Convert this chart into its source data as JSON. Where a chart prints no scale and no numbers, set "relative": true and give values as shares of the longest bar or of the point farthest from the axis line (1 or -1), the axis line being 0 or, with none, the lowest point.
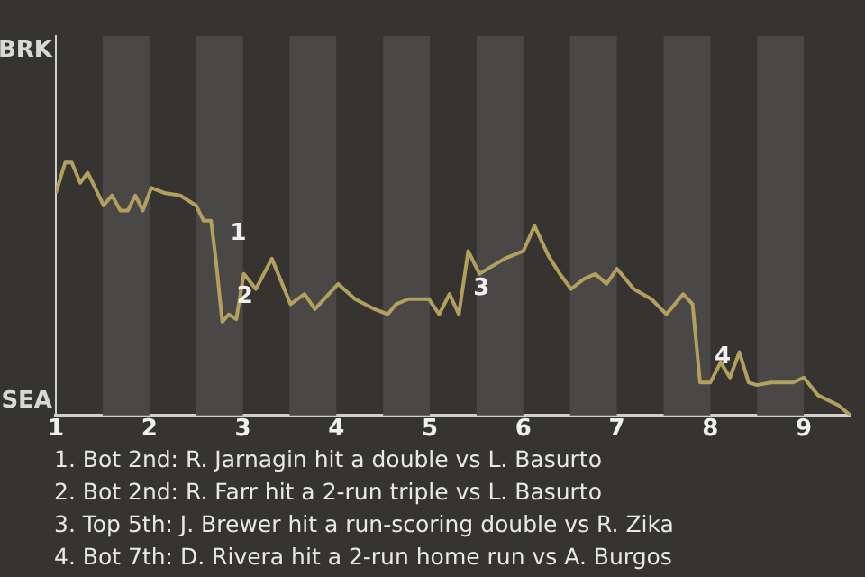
{
  "chart_data": {
    "type": "line",
    "relative": true,
    "x": [
      1.0,
      1.1,
      1.17,
      1.26,
      1.34,
      1.42,
      1.51,
      1.6,
      1.69,
      1.77,
      1.85,
      1.93,
      2.02,
      2.16,
      2.33,
      2.5,
      2.58,
      2.66,
      2.71,
      2.78,
      2.85,
      2.93,
      3.01,
      3.14,
      3.31,
      3.51,
      3.66,
      3.77,
      4.02,
      4.2,
      4.41,
      4.55,
      4.64,
      4.77,
      4.99,
      5.1,
      5.21,
      5.31,
      5.41,
      5.53,
      5.8,
      6.0,
      6.12,
      6.27,
      6.39,
      6.51,
      6.65,
      6.77,
      6.89,
      7.0,
      7.18,
      7.37,
      7.53,
      7.62,
      7.71,
      7.81,
      7.89,
      8.0,
      8.11,
      8.21,
      8.31,
      8.41,
      8.5,
      8.65,
      8.78,
      8.88,
      9.0,
      9.15,
      9.37,
      9.5
    ],
    "series": [
      {
        "color": "#b3a05f",
        "values": [
          0.88,
          1,
          1,
          0.92,
          0.96,
          0.9,
          0.83,
          0.87,
          0.81,
          0.81,
          0.87,
          0.81,
          0.9,
          0.88,
          0.87,
          0.83,
          0.77,
          0.77,
          0.62,
          0.37,
          0.4,
          0.38,
          0.56,
          0.5,
          0.62,
          0.44,
          0.48,
          0.42,
          0.52,
          0.46,
          0.42,
          0.4,
          0.44,
          0.46,
          0.46,
          0.4,
          0.48,
          0.4,
          0.65,
          0.56,
          0.62,
          0.65,
          0.75,
          0.63,
          0.56,
          0.5,
          0.54,
          0.56,
          0.52,
          0.58,
          0.5,
          0.46,
          0.4,
          0.44,
          0.48,
          0.44,
          0.13,
          0.13,
          0.21,
          0.15,
          0.25,
          0.13,
          0.12,
          0.13,
          0.13,
          0.13,
          0.15,
          0.08,
          0.04,
          0
        ]
      }
    ],
    "xlim": [
      1,
      9.5
    ],
    "xticks": [
      1,
      2,
      3,
      4,
      5,
      6,
      7,
      8,
      9
    ],
    "bands": [
      {
        "axis": "x",
        "from": 1.5,
        "to": 2,
        "color": "#4a4846"
      },
      {
        "axis": "x",
        "from": 2.5,
        "to": 3,
        "color": "#4a4846"
      },
      {
        "axis": "x",
        "from": 3.5,
        "to": 4,
        "color": "#4a4846"
      },
      {
        "axis": "x",
        "from": 4.5,
        "to": 5,
        "color": "#4a4846"
      },
      {
        "axis": "x",
        "from": 5.5,
        "to": 6,
        "color": "#4a4846"
      },
      {
        "axis": "x",
        "from": 6.5,
        "to": 7,
        "color": "#4a4846"
      },
      {
        "axis": "x",
        "from": 7.5,
        "to": 8,
        "color": "#4a4846"
      },
      {
        "axis": "x",
        "from": 8.5,
        "to": 9,
        "color": "#4a4846"
      }
    ],
    "annotations": [
      "BRK",
      "SEA",
      {
        "text": "1",
        "x": 2.71,
        "y": 0.62
      },
      {
        "text": "2",
        "x": 2.78,
        "y": 0.37
      },
      {
        "text": "3",
        "x": 5.31,
        "y": 0.4
      },
      {
        "text": "4",
        "x": 7.89,
        "y": 0.13
      },
      "1. Bot 2nd: R. Jarnagin hit a double vs L. Basurto",
      "2. Bot 2nd: R. Farr hit a 2-run triple vs L. Basurto",
      "3. Top 5th: J. Brewer hit a run-scoring double vs R. Zika",
      "4. Bot 7th: D. Rivera hit a 2-run home run vs A. Burgos"
    ],
    "legend": false,
    "marker": "none",
    "line_style": "solid"
  }
}
